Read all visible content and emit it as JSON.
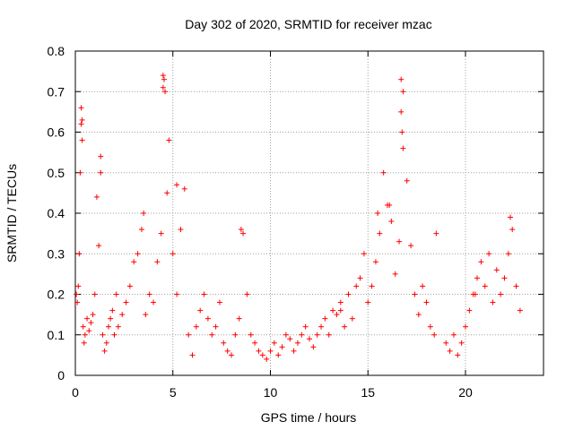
{
  "chart_data": {
    "type": "scatter",
    "title": "Day 302 of 2020, SRMTID for receiver mzac",
    "xlabel": "GPS time / hours",
    "ylabel": "SRMTID / TECUs",
    "xlim": [
      0,
      24
    ],
    "ylim": [
      0,
      0.8
    ],
    "x_ticks": [
      0,
      5,
      10,
      15,
      20
    ],
    "y_ticks": [
      0,
      0.1,
      0.2,
      0.3,
      0.4,
      0.5,
      0.6,
      0.7,
      0.8
    ],
    "x_tick_labels": [
      "0",
      "5",
      "10",
      "15",
      "20"
    ],
    "y_tick_labels": [
      "0",
      "0.1",
      "0.2",
      "0.3",
      "0.4",
      "0.5",
      "0.6",
      "0.7",
      "0.8"
    ],
    "grid": true,
    "marker": "+",
    "marker_color": "#ff0000",
    "series": [
      {
        "name": "SRMTID",
        "x": [
          0.05,
          0.1,
          0.15,
          0.2,
          0.25,
          0.3,
          0.35,
          0.4,
          0.45,
          0.5,
          0.6,
          0.7,
          0.8,
          0.9,
          1.0,
          1.1,
          1.2,
          1.3,
          1.4,
          1.5,
          1.6,
          1.7,
          1.8,
          1.9,
          2.0,
          2.2,
          2.4,
          2.6,
          2.8,
          3.0,
          3.2,
          3.4,
          3.6,
          3.8,
          4.0,
          4.2,
          4.4,
          4.5,
          4.6,
          4.7,
          4.8,
          5.0,
          5.2,
          5.4,
          5.6,
          5.8,
          6.0,
          6.2,
          6.4,
          6.6,
          6.8,
          7.0,
          7.2,
          7.4,
          7.6,
          7.8,
          8.0,
          8.2,
          8.4,
          8.6,
          8.8,
          9.0,
          9.2,
          9.4,
          9.6,
          9.8,
          10.0,
          10.2,
          10.4,
          10.6,
          10.8,
          11.0,
          11.2,
          11.4,
          11.6,
          11.8,
          12.0,
          12.2,
          12.4,
          12.6,
          12.8,
          13.0,
          13.2,
          13.4,
          13.6,
          13.8,
          14.0,
          14.2,
          14.4,
          14.6,
          14.8,
          15.0,
          15.2,
          15.4,
          15.6,
          15.8,
          16.0,
          16.2,
          16.4,
          16.6,
          16.7,
          16.8,
          17.0,
          17.2,
          17.4,
          17.6,
          17.8,
          18.0,
          18.2,
          18.4,
          19.0,
          19.2,
          19.4,
          19.6,
          19.8,
          20.0,
          20.2,
          20.4,
          20.6,
          20.8,
          21.0,
          21.2,
          21.4,
          21.6,
          21.8,
          22.0,
          22.2,
          22.4,
          22.6,
          22.8,
          0.3,
          0.35,
          1.3,
          4.5,
          4.55,
          16.7,
          16.75,
          16.8,
          5.2,
          15.5,
          16.1,
          2.1,
          3.5,
          8.5,
          13.6,
          18.5,
          20.5,
          22.3
        ],
        "y": [
          0.2,
          0.18,
          0.22,
          0.3,
          0.5,
          0.62,
          0.58,
          0.12,
          0.08,
          0.1,
          0.14,
          0.11,
          0.13,
          0.15,
          0.2,
          0.44,
          0.32,
          0.5,
          0.1,
          0.06,
          0.08,
          0.12,
          0.14,
          0.16,
          0.1,
          0.12,
          0.15,
          0.18,
          0.22,
          0.28,
          0.3,
          0.36,
          0.15,
          0.2,
          0.18,
          0.28,
          0.35,
          0.74,
          0.7,
          0.45,
          0.58,
          0.3,
          0.2,
          0.36,
          0.46,
          0.1,
          0.05,
          0.12,
          0.16,
          0.2,
          0.14,
          0.1,
          0.12,
          0.18,
          0.08,
          0.06,
          0.05,
          0.1,
          0.14,
          0.35,
          0.2,
          0.1,
          0.08,
          0.06,
          0.05,
          0.04,
          0.06,
          0.08,
          0.05,
          0.07,
          0.1,
          0.09,
          0.06,
          0.08,
          0.1,
          0.12,
          0.09,
          0.07,
          0.1,
          0.12,
          0.14,
          0.1,
          0.16,
          0.15,
          0.18,
          0.12,
          0.2,
          0.14,
          0.22,
          0.24,
          0.3,
          0.18,
          0.22,
          0.28,
          0.35,
          0.5,
          0.42,
          0.38,
          0.25,
          0.33,
          0.73,
          0.7,
          0.48,
          0.32,
          0.2,
          0.15,
          0.22,
          0.18,
          0.12,
          0.1,
          0.08,
          0.06,
          0.1,
          0.05,
          0.08,
          0.12,
          0.16,
          0.2,
          0.24,
          0.28,
          0.22,
          0.3,
          0.18,
          0.26,
          0.2,
          0.24,
          0.3,
          0.36,
          0.22,
          0.16,
          0.66,
          0.63,
          0.54,
          0.71,
          0.73,
          0.65,
          0.6,
          0.56,
          0.47,
          0.4,
          0.42,
          0.2,
          0.4,
          0.36,
          0.16,
          0.35,
          0.2,
          0.39
        ]
      }
    ]
  }
}
